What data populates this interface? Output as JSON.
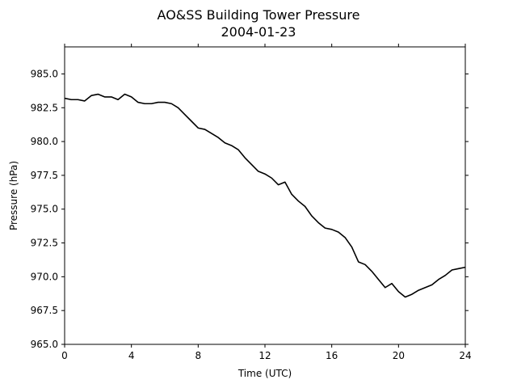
{
  "chart_data": {
    "type": "line",
    "title": "AO&SS Building Tower Pressure",
    "subtitle": "2004-01-23",
    "xlabel": "Time (UTC)",
    "ylabel": "Pressure (hPa)",
    "xlim": [
      0,
      24
    ],
    "ylim": [
      965.0,
      987.0
    ],
    "xticks": [
      0,
      4,
      8,
      12,
      16,
      20,
      24
    ],
    "yticks": [
      965.0,
      967.5,
      970.0,
      972.5,
      975.0,
      977.5,
      980.0,
      982.5,
      985.0
    ],
    "ytick_labels": [
      "965.0",
      "967.5",
      "970.0",
      "972.5",
      "975.0",
      "977.5",
      "980.0",
      "982.5",
      "985.0"
    ],
    "grid": false,
    "line_color": "#000000",
    "series": [
      {
        "x": [
          0,
          0.4,
          0.8,
          1.2,
          1.6,
          2.0,
          2.4,
          2.8,
          3.2,
          3.6,
          4.0,
          4.4,
          4.8,
          5.2,
          5.6,
          6.0,
          6.4,
          6.8,
          7.2,
          7.6,
          8.0,
          8.4,
          8.8,
          9.2,
          9.6,
          10.0,
          10.4,
          10.8,
          11.2,
          11.6,
          12.0,
          12.4,
          12.8,
          13.2,
          13.6,
          14.0,
          14.4,
          14.8,
          15.2,
          15.6,
          16.0,
          16.4,
          16.8,
          17.2,
          17.6,
          18.0,
          18.4,
          18.8,
          19.2,
          19.6,
          20.0,
          20.4,
          20.8,
          21.2,
          21.6,
          22.0,
          22.4,
          22.8,
          23.2,
          23.6,
          24.0
        ],
        "values": [
          983.2,
          983.1,
          983.1,
          983.0,
          983.4,
          983.5,
          983.3,
          983.3,
          983.1,
          983.5,
          983.3,
          982.9,
          982.8,
          982.8,
          982.9,
          982.9,
          982.8,
          982.5,
          982.0,
          981.5,
          981.0,
          980.9,
          980.6,
          980.3,
          979.9,
          979.7,
          979.4,
          978.8,
          978.3,
          977.8,
          977.6,
          977.3,
          976.8,
          977.0,
          976.1,
          975.6,
          975.2,
          974.5,
          974.0,
          973.6,
          973.5,
          973.3,
          972.9,
          972.2,
          971.1,
          970.9,
          970.4,
          969.8,
          969.2,
          969.5,
          968.9,
          968.5,
          968.7,
          969.0,
          969.2,
          969.4,
          969.8,
          970.1,
          970.5,
          970.6,
          970.7
        ]
      }
    ]
  }
}
